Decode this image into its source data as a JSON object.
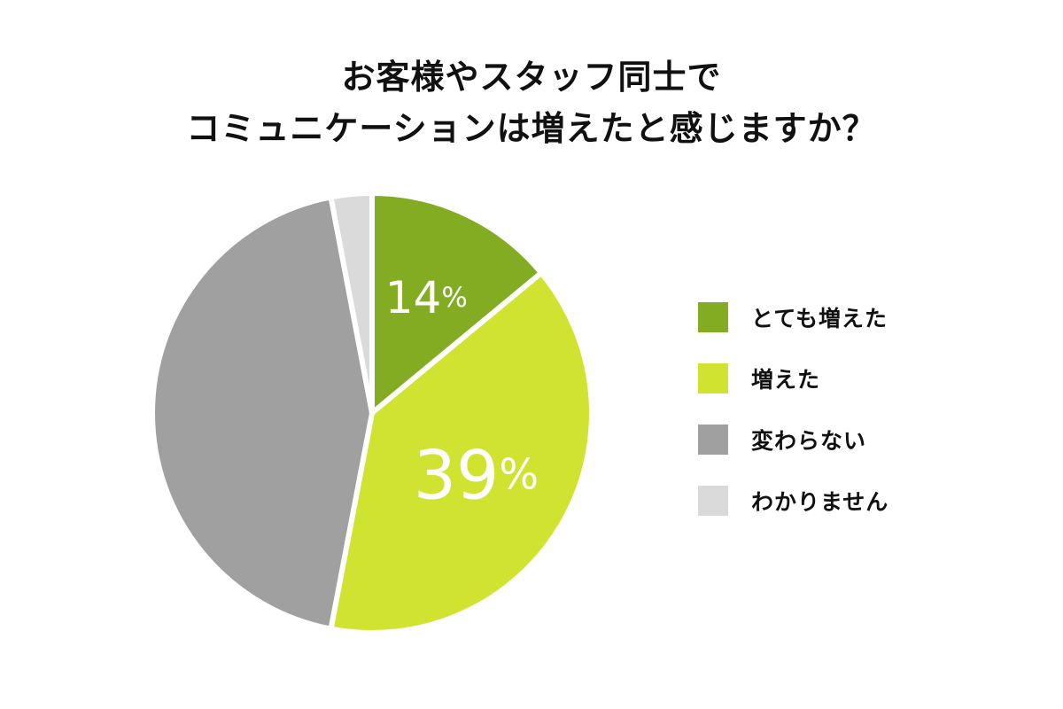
{
  "title_lines": [
    "お客様やスタッフ同士で",
    "コミュニケーションは増えたと感じますか？"
  ],
  "chart_data": {
    "type": "pie",
    "title": "お客様やスタッフ同士で コミュニケーションは増えたと感じますか？",
    "slices": [
      {
        "label": "とても増えた",
        "value": 14,
        "value_label": "14%",
        "color": "#83ac23"
      },
      {
        "label": "増えた",
        "value": 39,
        "value_label": "39%",
        "color": "#d1e331"
      },
      {
        "label": "変わらない",
        "value": 44,
        "value_label": "",
        "color": "#a0a0a0"
      },
      {
        "label": "わかりません",
        "value": 3,
        "value_label": "",
        "color": "#dadada"
      }
    ],
    "legend_position": "right",
    "start": "top, clockwise"
  }
}
